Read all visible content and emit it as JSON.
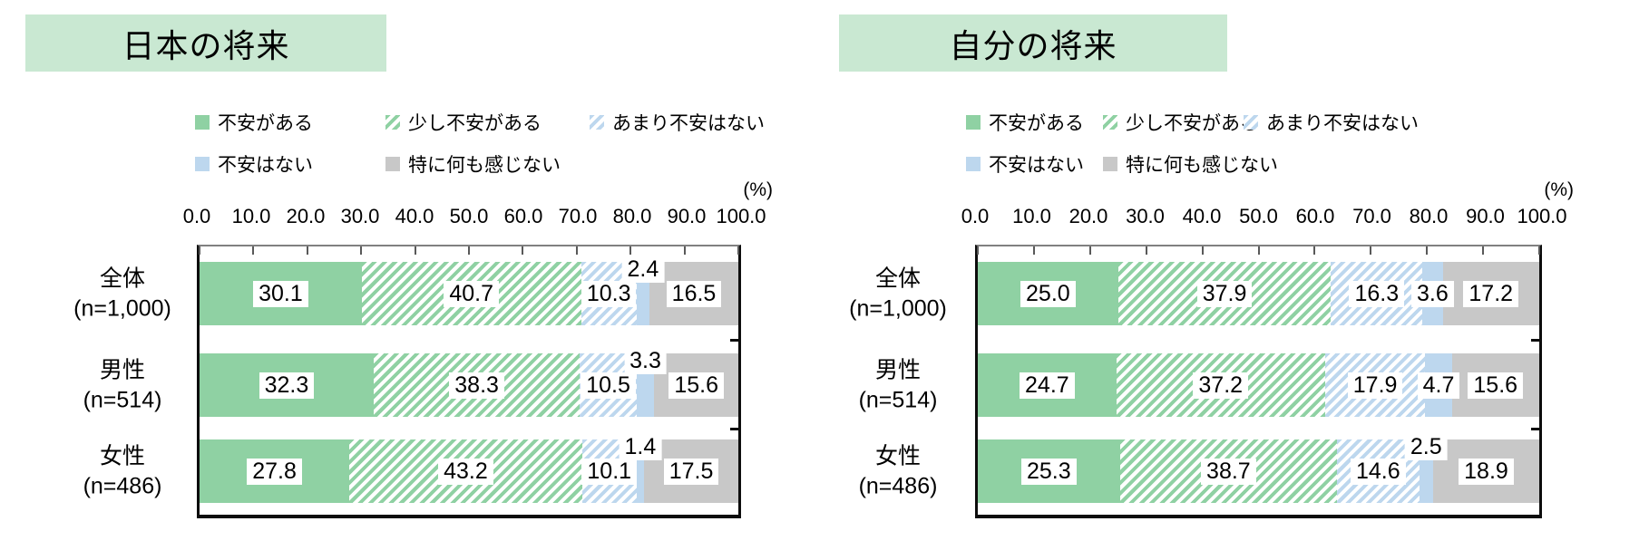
{
  "colors": {
    "title_background": "#c9e8d2",
    "green_solid": "#8fd1a3",
    "blue_solid": "#bdd7ee",
    "gray_solid": "#c8c8c8",
    "label_chip_background": "#ffffff",
    "text": "#000000"
  },
  "axis": {
    "unit": "(%)",
    "min": 0,
    "max": 100,
    "ticks": [
      "0.0",
      "10.0",
      "20.0",
      "30.0",
      "40.0",
      "50.0",
      "60.0",
      "70.0",
      "80.0",
      "90.0",
      "100.0"
    ]
  },
  "legend": {
    "items": [
      {
        "label": "不安がある",
        "pattern": "green-solid"
      },
      {
        "label": "少し不安がある",
        "pattern": "green-hatch"
      },
      {
        "label": "あまり不安はない",
        "pattern": "blue-hatch"
      },
      {
        "label": "不安はない",
        "pattern": "blue-solid"
      },
      {
        "label": "特に何も感じない",
        "pattern": "gray-solid"
      }
    ]
  },
  "chart_data": [
    {
      "type": "bar",
      "orientation": "horizontal-stacked",
      "title": "日本の将来",
      "xlim": [
        0,
        100
      ],
      "xlabel": "(%)",
      "categories": [
        "全体",
        "男性",
        "女性"
      ],
      "category_sublabels": [
        "(n=1,000)",
        "(n=514)",
        "(n=486)"
      ],
      "series": [
        {
          "name": "不安がある",
          "pattern": "green-solid",
          "values": [
            30.1,
            32.3,
            27.8
          ],
          "raised_label_rows": []
        },
        {
          "name": "少し不安がある",
          "pattern": "green-hatch",
          "values": [
            40.7,
            38.3,
            43.2
          ],
          "raised_label_rows": []
        },
        {
          "name": "あまり不安はない",
          "pattern": "blue-hatch",
          "values": [
            10.3,
            10.5,
            10.1
          ],
          "raised_label_rows": []
        },
        {
          "name": "不安はない",
          "pattern": "blue-solid",
          "values": [
            2.4,
            3.3,
            1.4
          ],
          "raised_label_rows": [
            0,
            1,
            2
          ]
        },
        {
          "name": "特に何も感じない",
          "pattern": "gray-solid",
          "values": [
            16.5,
            15.6,
            17.5
          ],
          "raised_label_rows": []
        }
      ]
    },
    {
      "type": "bar",
      "orientation": "horizontal-stacked",
      "title": "自分の将来",
      "xlim": [
        0,
        100
      ],
      "xlabel": "(%)",
      "categories": [
        "全体",
        "男性",
        "女性"
      ],
      "category_sublabels": [
        "(n=1,000)",
        "(n=514)",
        "(n=486)"
      ],
      "series": [
        {
          "name": "不安がある",
          "pattern": "green-solid",
          "values": [
            25.0,
            24.7,
            25.3
          ],
          "raised_label_rows": []
        },
        {
          "name": "少し不安がある",
          "pattern": "green-hatch",
          "values": [
            37.9,
            37.2,
            38.7
          ],
          "raised_label_rows": []
        },
        {
          "name": "あまり不安はない",
          "pattern": "blue-hatch",
          "values": [
            16.3,
            17.9,
            14.6
          ],
          "raised_label_rows": []
        },
        {
          "name": "不安はない",
          "pattern": "blue-solid",
          "values": [
            3.6,
            4.7,
            2.5
          ],
          "raised_label_rows": [
            2
          ]
        },
        {
          "name": "特に何も感じない",
          "pattern": "gray-solid",
          "values": [
            17.2,
            15.6,
            18.9
          ],
          "raised_label_rows": []
        }
      ]
    }
  ]
}
